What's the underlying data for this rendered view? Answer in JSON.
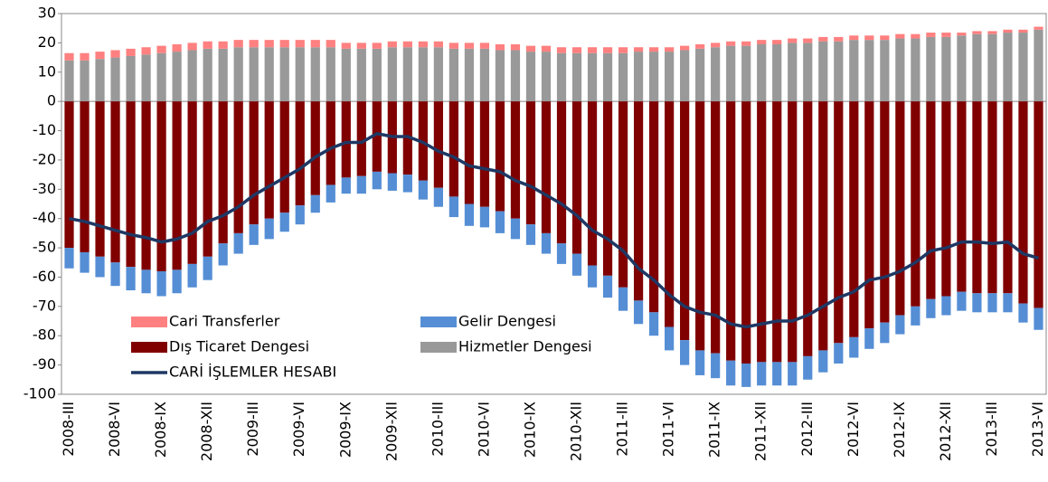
{
  "chart_data": {
    "type": "bar",
    "categories": [
      "2008-III",
      null,
      null,
      "2008-VI",
      null,
      null,
      "2008-IX",
      null,
      null,
      "2008-XII",
      null,
      null,
      "2009-III",
      null,
      null,
      "2009-VI",
      null,
      null,
      "2009-IX",
      null,
      null,
      "2009-XII",
      null,
      null,
      "2010-III",
      null,
      null,
      "2010-VI",
      null,
      null,
      "2010-IX",
      null,
      null,
      "2010-XII",
      null,
      null,
      "2011-III",
      null,
      null,
      "2011-VI",
      null,
      null,
      "2011-IX",
      null,
      null,
      "2011-XII",
      null,
      null,
      "2012-III",
      null,
      null,
      "2012-VI",
      null,
      null,
      "2012-IX",
      null,
      null,
      "2012-XII",
      null,
      null,
      "2013-III",
      null,
      null,
      "2013-VI"
    ],
    "series": [
      {
        "name": "Cari Transferler",
        "color": "#ff8080",
        "type": "bar",
        "values": [
          2.5,
          2.5,
          2.5,
          2.5,
          2.5,
          2.5,
          2.5,
          2.5,
          2.5,
          2.5,
          2.5,
          2.5,
          2.5,
          2.5,
          2.5,
          2.5,
          2.5,
          2.5,
          2,
          2,
          2,
          2,
          2,
          2,
          2,
          2,
          2,
          2,
          2,
          2,
          2,
          2,
          2,
          2,
          2,
          2,
          2,
          1.5,
          1.5,
          1.5,
          1.5,
          1.5,
          1.5,
          1.5,
          1.5,
          1.5,
          1.5,
          1.5,
          1.5,
          1.5,
          1.5,
          1.5,
          1.5,
          1.5,
          1.5,
          1.5,
          1.5,
          1.5,
          1,
          1,
          1,
          1,
          1,
          1
        ]
      },
      {
        "name": "Gelir Dengesi",
        "color": "#558ed5",
        "type": "bar",
        "values": [
          -7,
          -7,
          -7,
          -8,
          -8,
          -8,
          -8.5,
          -8,
          -8,
          -8,
          -7.5,
          -7,
          -7,
          -7,
          -6.5,
          -6.5,
          -6,
          -6,
          -5.5,
          -6,
          -6,
          -6,
          -6,
          -6.5,
          -6.5,
          -7,
          -7.5,
          -7,
          -7.5,
          -7,
          -7,
          -7,
          -7,
          -7.5,
          -7.5,
          -7.5,
          -8,
          -8,
          -8,
          -8,
          -8.5,
          -8.5,
          -8.5,
          -8.5,
          -8,
          -8,
          -8,
          -8,
          -8,
          -7.5,
          -7,
          -7,
          -7,
          -7,
          -6.5,
          -6.5,
          -6.5,
          -6.5,
          -6.5,
          -6.5,
          -6.5,
          -6.5,
          -6.5,
          -7.5
        ]
      },
      {
        "name": "Dış Ticaret Dengesi",
        "color": "#800000",
        "type": "bar",
        "values": [
          -50,
          -51.5,
          -53,
          -55,
          -56.5,
          -57.5,
          -58,
          -57.5,
          -55.5,
          -53,
          -48.5,
          -45,
          -42,
          -40,
          -38,
          -35.5,
          -32,
          -28.5,
          -26,
          -25.5,
          -24,
          -24.5,
          -25,
          -27,
          -29.5,
          -32.5,
          -35,
          -36,
          -37.5,
          -40,
          -42,
          -45,
          -48.5,
          -52,
          -56,
          -59.5,
          -63.5,
          -68,
          -72,
          -77,
          -81.5,
          -85,
          -86,
          -88.5,
          -89.5,
          -89,
          -89,
          -89,
          -87,
          -85,
          -82.5,
          -80.5,
          -77.5,
          -75.5,
          -73,
          -70,
          -67.5,
          -66.5,
          -65,
          -65.5,
          -65.5,
          -65.5,
          -69,
          -70.5
        ]
      },
      {
        "name": "Hizmetler Dengesi",
        "color": "#999999",
        "type": "bar",
        "values": [
          14,
          14,
          14.5,
          15,
          15.5,
          16,
          16.5,
          17,
          17.5,
          18,
          18,
          18.5,
          18.5,
          18.5,
          18.5,
          18.5,
          18.5,
          18.5,
          18,
          18,
          18,
          18.5,
          18.5,
          18.5,
          18.5,
          18,
          18,
          18,
          17.5,
          17.5,
          17,
          17,
          16.5,
          16.5,
          16.5,
          16.5,
          16.5,
          17,
          17,
          17,
          17.5,
          18,
          18.5,
          19,
          19,
          19.5,
          19.5,
          20,
          20,
          20.5,
          20.5,
          21,
          21,
          21,
          21.5,
          21.5,
          22,
          22,
          22.5,
          23,
          23,
          23.5,
          23.5,
          24.5
        ]
      },
      {
        "name": "CARİ İŞLEMLER HESABI",
        "color": "#1f3864",
        "type": "line",
        "values": [
          -40,
          -41,
          -42.5,
          -44,
          -45.5,
          -46.5,
          -48,
          -47,
          -45,
          -41,
          -39,
          -36,
          -32,
          -29,
          -26,
          -23,
          -19,
          -16,
          -14,
          -14,
          -11,
          -12,
          -12,
          -14,
          -17,
          -19,
          -22,
          -23,
          -24,
          -27,
          -29,
          -32,
          -35,
          -39,
          -44,
          -47,
          -51,
          -57,
          -61,
          -66,
          -70,
          -72,
          -73,
          -76,
          -77,
          -76,
          -75,
          -75,
          -73,
          -70,
          -67,
          -65,
          -61,
          -60,
          -58,
          -55,
          -51,
          -50,
          -48,
          -48,
          -48.5,
          -48,
          -52,
          -53.5
        ]
      }
    ],
    "ylim": [
      -100,
      30
    ],
    "yticks": [
      -100,
      -90,
      -80,
      -70,
      -60,
      -50,
      -40,
      -30,
      -20,
      -10,
      0,
      10,
      20,
      30
    ]
  }
}
